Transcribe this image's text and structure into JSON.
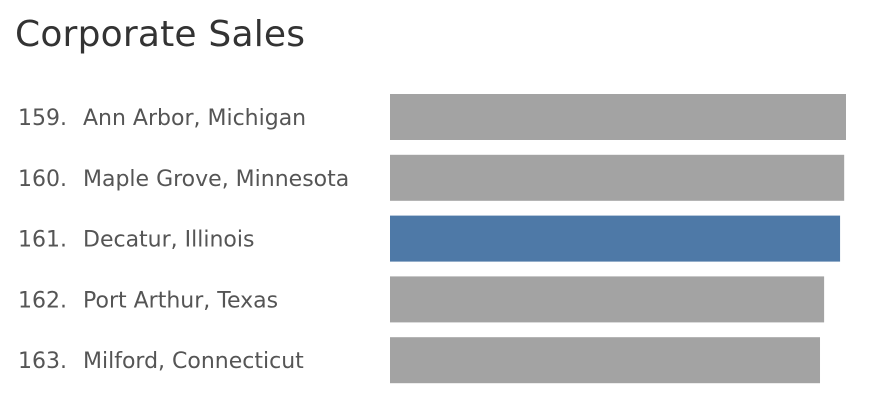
{
  "chart_data": {
    "type": "bar",
    "orientation": "horizontal",
    "title": "Corporate Sales",
    "categories": [
      {
        "rank": "159.",
        "name": "Ann Arbor, Michigan"
      },
      {
        "rank": "160.",
        "name": "Maple Grove, Minnesota"
      },
      {
        "rank": "161.",
        "name": "Decatur, Illinois"
      },
      {
        "rank": "162.",
        "name": "Port Arthur, Texas"
      },
      {
        "rank": "163.",
        "name": "Milford, Connecticut"
      }
    ],
    "values": [
      100,
      99.6,
      98.7,
      95.2,
      94.3
    ],
    "highlight_index": 2,
    "xlim": [
      0,
      100
    ],
    "grid": false,
    "colors": {
      "bar": "#a3a3a3",
      "highlight": "#4e79a7"
    }
  }
}
